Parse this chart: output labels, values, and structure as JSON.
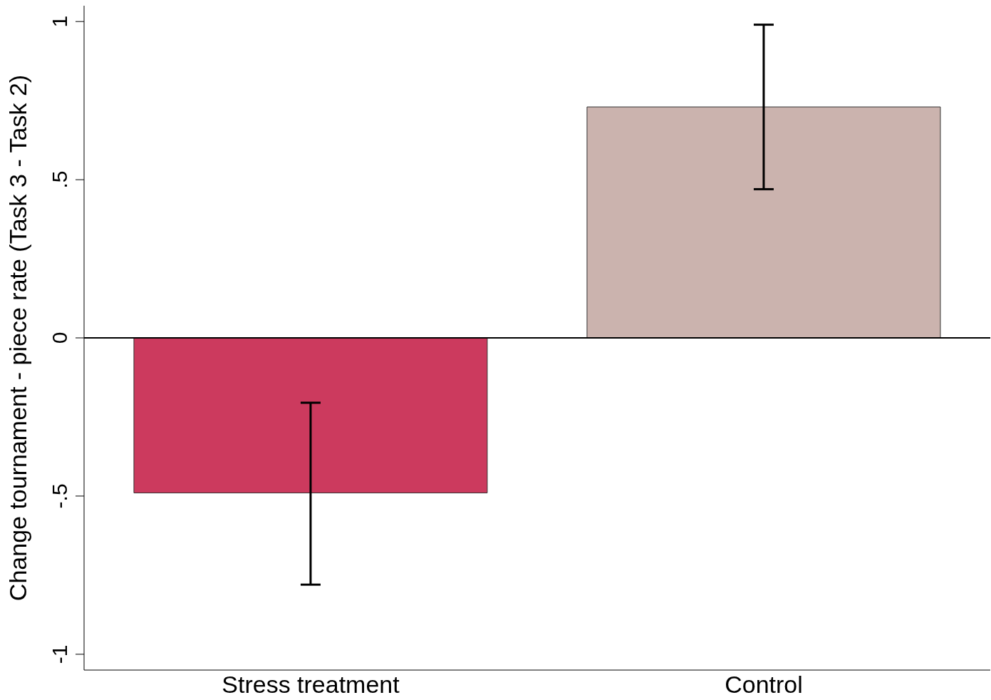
{
  "chart_data": {
    "type": "bar",
    "ylabel": "Change tournament - piece rate (Task 3 - Task 2)",
    "categories": [
      "Stress treatment",
      "Control"
    ],
    "values": [
      -0.49,
      0.73
    ],
    "colors": [
      "#cc3a5e",
      "#cbb3ae"
    ],
    "errors": [
      [
        -0.78,
        -0.205
      ],
      [
        0.47,
        0.99
      ]
    ],
    "ylim": [
      -1.05,
      1.05
    ],
    "yticks": [
      -1,
      {
        "value": -0.5,
        "label": "-.5"
      },
      0,
      {
        "value": 0.5,
        "label": ".5"
      },
      1
    ],
    "ref_lines": [
      {
        "axis": "y",
        "value": 0,
        "color": "#000000"
      }
    ],
    "grid": false,
    "legend": false
  }
}
